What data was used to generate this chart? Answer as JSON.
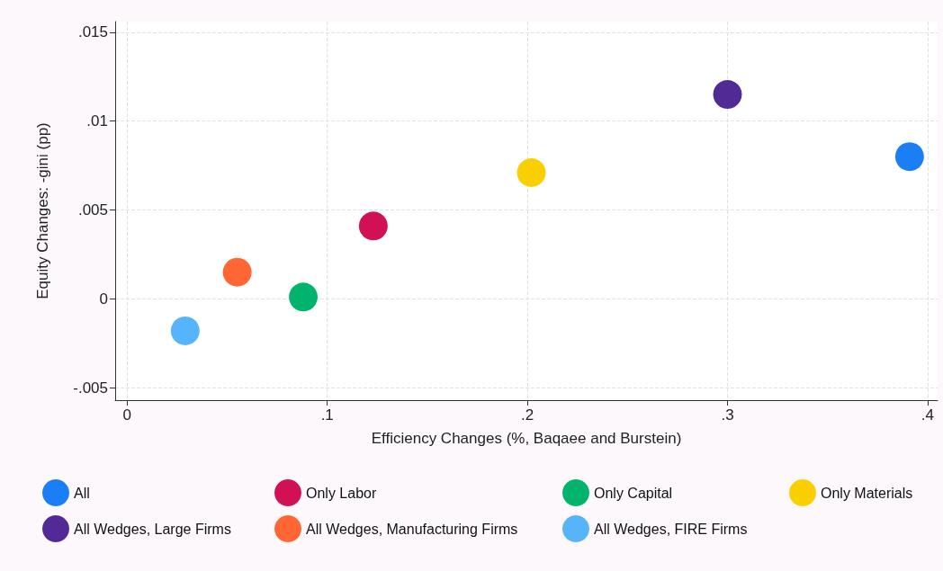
{
  "chart_data": {
    "type": "scatter",
    "xlabel": "Efficiency Changes (%, Baqaee and Burstein)",
    "ylabel": "Equity Changes: -gini (pp)",
    "xlim": [
      -0.006,
      0.405
    ],
    "xticks": [
      {
        "value": 0,
        "label": "0"
      },
      {
        "value": 0.1,
        "label": ".1"
      },
      {
        "value": 0.2,
        "label": ".2"
      },
      {
        "value": 0.3,
        "label": ".3"
      },
      {
        "value": 0.4,
        "label": ".4"
      }
    ],
    "ylim": [
      -0.0057,
      0.0156
    ],
    "yticks": [
      {
        "value": -0.005,
        "label": "-.005"
      },
      {
        "value": 0,
        "label": "0"
      },
      {
        "value": 0.005,
        "label": ".005"
      },
      {
        "value": 0.01,
        "label": ".01"
      },
      {
        "value": 0.015,
        "label": ".015"
      }
    ],
    "grid": true,
    "legend": "bottom",
    "marker": "circle",
    "series": [
      {
        "name": "All",
        "color": "#1a7ff5",
        "x": [
          0.391
        ],
        "values": [
          0.008
        ]
      },
      {
        "name": "Only Labor",
        "color": "#d21054",
        "x": [
          0.123
        ],
        "values": [
          0.0041
        ]
      },
      {
        "name": "Only Capital",
        "color": "#00b46e",
        "x": [
          0.088
        ],
        "values": [
          0.0001
        ]
      },
      {
        "name": "Only Materials",
        "color": "#f9cf00",
        "x": [
          0.202
        ],
        "values": [
          0.0071
        ]
      },
      {
        "name": "All Wedges, Large Firms",
        "color": "#512a96",
        "x": [
          0.3
        ],
        "values": [
          0.0115
        ]
      },
      {
        "name": "All Wedges, Manufacturing Firms",
        "color": "#ff6633",
        "x": [
          0.055
        ],
        "values": [
          0.0015
        ]
      },
      {
        "name": "All Wedges, FIRE Firms",
        "color": "#55b4fa",
        "x": [
          0.029
        ],
        "values": [
          -0.0018
        ]
      }
    ]
  }
}
